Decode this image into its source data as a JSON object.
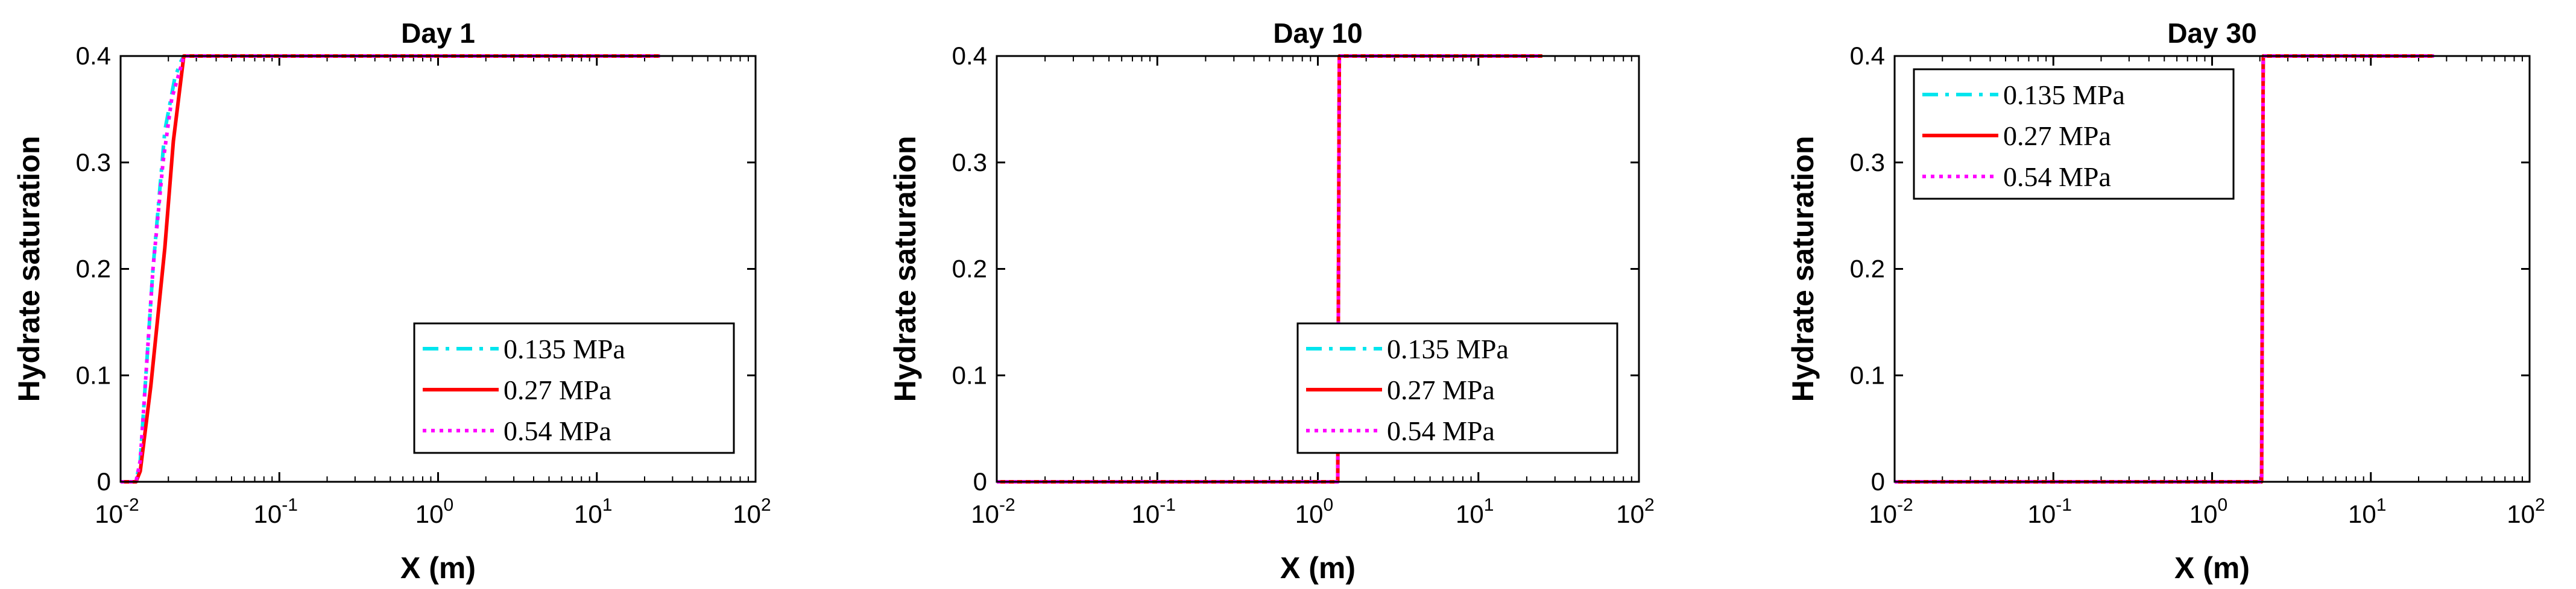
{
  "chart_data": [
    {
      "type": "line",
      "title": "Day 1",
      "xlabel": "X (m)",
      "ylabel": "Hydrate saturation",
      "xscale": "log",
      "xlim": [
        0.01,
        100
      ],
      "ylim": [
        0,
        0.4
      ],
      "yticks": [
        "0",
        "0.1",
        "0.2",
        "0.3",
        "0.4"
      ],
      "xticks": [
        {
          "base": "10",
          "exp": "-2"
        },
        {
          "base": "10",
          "exp": "-1"
        },
        {
          "base": "10",
          "exp": "0"
        },
        {
          "base": "10",
          "exp": "1"
        },
        {
          "base": "10",
          "exp": "2"
        }
      ],
      "legend_position": "bottom-right",
      "series": [
        {
          "name": "0.135 MPa",
          "color": "#00e5ee",
          "style": "dashdot",
          "x": [
            0.01,
            0.0125,
            0.0133,
            0.016,
            0.019,
            0.022,
            0.024,
            0.025,
            25
          ],
          "y": [
            0,
            0,
            0.02,
            0.2,
            0.33,
            0.38,
            0.395,
            0.4,
            0.4
          ]
        },
        {
          "name": "0.27 MPa",
          "color": "#ff0000",
          "style": "solid",
          "x": [
            0.01,
            0.0125,
            0.0133,
            0.0155,
            0.019,
            0.0215,
            0.025,
            25
          ],
          "y": [
            0,
            0,
            0.01,
            0.09,
            0.22,
            0.32,
            0.4,
            0.4
          ]
        },
        {
          "name": "0.54 MPa",
          "color": "#ff00ff",
          "style": "dotted",
          "x": [
            0.01,
            0.0125,
            0.0133,
            0.016,
            0.0185,
            0.021,
            0.024,
            0.025,
            25
          ],
          "y": [
            0,
            0,
            0.02,
            0.2,
            0.3,
            0.36,
            0.39,
            0.4,
            0.4
          ]
        }
      ]
    },
    {
      "type": "line",
      "title": "Day 10",
      "xlabel": "X (m)",
      "ylabel": "Hydrate saturation",
      "xscale": "log",
      "xlim": [
        0.01,
        100
      ],
      "ylim": [
        0,
        0.4
      ],
      "yticks": [
        "0",
        "0.1",
        "0.2",
        "0.3",
        "0.4"
      ],
      "xticks": [
        {
          "base": "10",
          "exp": "-2"
        },
        {
          "base": "10",
          "exp": "-1"
        },
        {
          "base": "10",
          "exp": "0"
        },
        {
          "base": "10",
          "exp": "1"
        },
        {
          "base": "10",
          "exp": "2"
        }
      ],
      "legend_position": "bottom-right",
      "series": [
        {
          "name": "0.135 MPa",
          "color": "#00e5ee",
          "style": "dashdot",
          "x": [
            0.01,
            1.33,
            1.36,
            25
          ],
          "y": [
            0,
            0,
            0.4,
            0.4
          ]
        },
        {
          "name": "0.27 MPa",
          "color": "#ff0000",
          "style": "solid",
          "x": [
            0.01,
            1.33,
            1.36,
            25
          ],
          "y": [
            0,
            0,
            0.4,
            0.4
          ]
        },
        {
          "name": "0.54 MPa",
          "color": "#ff00ff",
          "style": "dotted",
          "x": [
            0.01,
            1.33,
            1.36,
            25
          ],
          "y": [
            0,
            0,
            0.4,
            0.4
          ]
        }
      ]
    },
    {
      "type": "line",
      "title": "Day 30",
      "xlabel": "X (m)",
      "ylabel": "Hydrate saturation",
      "xscale": "log",
      "xlim": [
        0.01,
        100
      ],
      "ylim": [
        0,
        0.4
      ],
      "yticks": [
        "0",
        "0.1",
        "0.2",
        "0.3",
        "0.4"
      ],
      "xticks": [
        {
          "base": "10",
          "exp": "-2"
        },
        {
          "base": "10",
          "exp": "-1"
        },
        {
          "base": "10",
          "exp": "0"
        },
        {
          "base": "10",
          "exp": "1"
        },
        {
          "base": "10",
          "exp": "2"
        }
      ],
      "legend_position": "top-left",
      "series": [
        {
          "name": "0.135 MPa",
          "color": "#00e5ee",
          "style": "dashdot",
          "x": [
            0.01,
            2.05,
            2.1,
            25
          ],
          "y": [
            0,
            0,
            0.4,
            0.4
          ]
        },
        {
          "name": "0.27 MPa",
          "color": "#ff0000",
          "style": "solid",
          "x": [
            0.01,
            2.05,
            2.1,
            25
          ],
          "y": [
            0,
            0,
            0.4,
            0.4
          ]
        },
        {
          "name": "0.54 MPa",
          "color": "#ff00ff",
          "style": "dotted",
          "x": [
            0.01,
            2.05,
            2.1,
            25
          ],
          "y": [
            0,
            0,
            0.4,
            0.4
          ]
        }
      ]
    }
  ]
}
